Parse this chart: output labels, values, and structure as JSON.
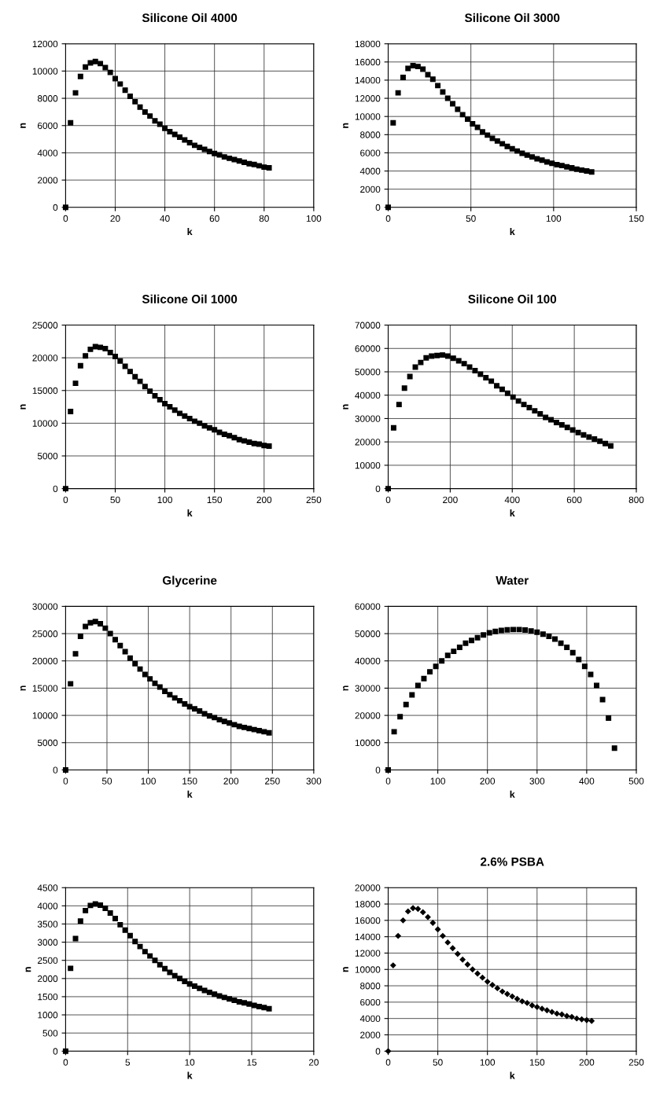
{
  "chart_data": [
    {
      "type": "scatter",
      "title": "Silicone Oil 4000",
      "xlabel": "k",
      "ylabel": "n",
      "marker": "square",
      "grid": true,
      "xlim": [
        0,
        100
      ],
      "xticks": [
        0,
        20,
        40,
        60,
        80,
        100
      ],
      "ylim": [
        0,
        12000
      ],
      "yticks": [
        0,
        2000,
        4000,
        6000,
        8000,
        10000,
        12000
      ],
      "series": [
        {
          "color": "#000000",
          "x": [
            0,
            2,
            4,
            6,
            8,
            10,
            12,
            14,
            16,
            18,
            20,
            22,
            24,
            26,
            28,
            30,
            32,
            34,
            36,
            38,
            40,
            42,
            44,
            46,
            48,
            50,
            52,
            54,
            56,
            58,
            60,
            62,
            64,
            66,
            68,
            70,
            72,
            74,
            76,
            78,
            80,
            82
          ],
          "values": [
            0,
            6200,
            8400,
            9600,
            10300,
            10600,
            10700,
            10550,
            10250,
            9900,
            9450,
            9050,
            8600,
            8150,
            7750,
            7350,
            7000,
            6700,
            6350,
            6100,
            5800,
            5550,
            5350,
            5150,
            4950,
            4750,
            4550,
            4400,
            4250,
            4100,
            3950,
            3850,
            3700,
            3600,
            3500,
            3400,
            3300,
            3200,
            3150,
            3050,
            2950,
            2900
          ]
        }
      ]
    },
    {
      "type": "scatter",
      "title": "Silicone Oil 3000",
      "xlabel": "k",
      "ylabel": "n",
      "marker": "square",
      "grid": true,
      "xlim": [
        0,
        150
      ],
      "xticks": [
        0,
        50,
        100,
        150
      ],
      "ylim": [
        0,
        18000
      ],
      "yticks": [
        0,
        2000,
        4000,
        6000,
        8000,
        10000,
        12000,
        14000,
        16000,
        18000
      ],
      "series": [
        {
          "color": "#000000",
          "x": [
            0,
            3,
            6,
            9,
            12,
            15,
            18,
            21,
            24,
            27,
            30,
            33,
            36,
            39,
            42,
            45,
            48,
            51,
            54,
            57,
            60,
            63,
            66,
            69,
            72,
            75,
            78,
            81,
            84,
            87,
            90,
            93,
            96,
            99,
            102,
            105,
            108,
            111,
            114,
            117,
            120,
            123
          ],
          "values": [
            0,
            9300,
            12600,
            14300,
            15300,
            15600,
            15500,
            15200,
            14600,
            14100,
            13400,
            12700,
            12000,
            11400,
            10800,
            10200,
            9700,
            9200,
            8800,
            8300,
            7950,
            7600,
            7300,
            7000,
            6700,
            6450,
            6200,
            5950,
            5750,
            5550,
            5350,
            5200,
            5000,
            4850,
            4700,
            4600,
            4450,
            4350,
            4200,
            4100,
            4000,
            3900
          ]
        }
      ]
    },
    {
      "type": "scatter",
      "title": "Silicone Oil 1000",
      "xlabel": "k",
      "ylabel": "n",
      "marker": "square",
      "grid": true,
      "xlim": [
        0,
        250
      ],
      "xticks": [
        0,
        50,
        100,
        150,
        200,
        250
      ],
      "ylim": [
        0,
        25000
      ],
      "yticks": [
        0,
        5000,
        10000,
        15000,
        20000,
        25000
      ],
      "series": [
        {
          "color": "#000000",
          "x": [
            0,
            5,
            10,
            15,
            20,
            25,
            30,
            35,
            40,
            45,
            50,
            55,
            60,
            65,
            70,
            75,
            80,
            85,
            90,
            95,
            100,
            105,
            110,
            115,
            120,
            125,
            130,
            135,
            140,
            145,
            150,
            155,
            160,
            165,
            170,
            175,
            180,
            185,
            190,
            195,
            200,
            205
          ],
          "values": [
            0,
            11800,
            16100,
            18800,
            20300,
            21300,
            21700,
            21600,
            21400,
            20800,
            20200,
            19500,
            18700,
            17900,
            17100,
            16400,
            15600,
            14900,
            14200,
            13600,
            13000,
            12500,
            12000,
            11500,
            11100,
            10700,
            10300,
            10000,
            9600,
            9300,
            9000,
            8600,
            8300,
            8100,
            7800,
            7500,
            7300,
            7100,
            6900,
            6800,
            6600,
            6500
          ]
        }
      ]
    },
    {
      "type": "scatter",
      "title": "Silicone Oil 100",
      "xlabel": "k",
      "ylabel": "n",
      "marker": "square",
      "grid": true,
      "xlim": [
        0,
        800
      ],
      "xticks": [
        0,
        200,
        400,
        600,
        800
      ],
      "ylim": [
        0,
        70000
      ],
      "yticks": [
        0,
        10000,
        20000,
        30000,
        40000,
        50000,
        60000,
        70000
      ],
      "series": [
        {
          "color": "#000000",
          "x": [
            0,
            17.5,
            35,
            52.5,
            70,
            87.5,
            105,
            122.5,
            140,
            157.5,
            175,
            192.5,
            210,
            227.5,
            245,
            262.5,
            280,
            297.5,
            315,
            332.5,
            350,
            367.5,
            385,
            402.5,
            420,
            437.5,
            455,
            472.5,
            490,
            507.5,
            525,
            542.5,
            560,
            577.5,
            595,
            612.5,
            630,
            647.5,
            665,
            682.5,
            700,
            717.5
          ],
          "values": [
            0,
            26000,
            36000,
            43000,
            48000,
            52000,
            54000,
            56000,
            56700,
            57000,
            57200,
            56700,
            55800,
            54700,
            53500,
            52000,
            50500,
            49000,
            47500,
            46000,
            44000,
            42500,
            40800,
            39200,
            37500,
            36000,
            34700,
            33300,
            32000,
            30500,
            29500,
            28300,
            27300,
            26200,
            25100,
            24000,
            23000,
            22100,
            21200,
            20300,
            19300,
            18300
          ]
        }
      ]
    },
    {
      "type": "scatter",
      "title": "Glycerine",
      "xlabel": "k",
      "ylabel": "n",
      "marker": "square",
      "grid": true,
      "xlim": [
        0,
        300
      ],
      "xticks": [
        0,
        50,
        100,
        150,
        200,
        250,
        300
      ],
      "ylim": [
        0,
        30000
      ],
      "yticks": [
        0,
        5000,
        10000,
        15000,
        20000,
        25000,
        30000
      ],
      "series": [
        {
          "color": "#000000",
          "x": [
            0,
            6,
            12,
            18,
            24,
            30,
            36,
            42,
            48,
            54,
            60,
            66,
            72,
            78,
            84,
            90,
            96,
            102,
            108,
            114,
            120,
            126,
            132,
            138,
            144,
            150,
            156,
            162,
            168,
            174,
            180,
            186,
            192,
            198,
            204,
            210,
            216,
            222,
            228,
            234,
            240,
            246
          ],
          "values": [
            0,
            15800,
            21300,
            24500,
            26300,
            27000,
            27200,
            26800,
            26000,
            25000,
            23900,
            22800,
            21700,
            20500,
            19500,
            18500,
            17500,
            16700,
            15900,
            15200,
            14400,
            13800,
            13200,
            12700,
            12100,
            11600,
            11200,
            10800,
            10300,
            9900,
            9600,
            9200,
            8900,
            8600,
            8300,
            8000,
            7800,
            7600,
            7400,
            7200,
            7000,
            6800
          ]
        }
      ]
    },
    {
      "type": "scatter",
      "title": "Water",
      "xlabel": "k",
      "ylabel": "n",
      "marker": "square",
      "grid": true,
      "xlim": [
        0,
        500
      ],
      "xticks": [
        0,
        100,
        200,
        300,
        400,
        500
      ],
      "ylim": [
        0,
        60000
      ],
      "yticks": [
        0,
        10000,
        20000,
        30000,
        40000,
        50000,
        60000
      ],
      "series": [
        {
          "color": "#000000",
          "x": [
            0,
            12,
            24,
            36,
            48,
            60,
            72,
            84,
            96,
            108,
            120,
            132,
            144,
            156,
            168,
            180,
            192,
            204,
            216,
            228,
            240,
            252,
            264,
            276,
            288,
            300,
            312,
            324,
            336,
            348,
            360,
            372,
            384,
            396,
            408,
            420,
            432,
            444,
            456
          ],
          "values": [
            0,
            14000,
            19500,
            24000,
            27500,
            31000,
            33500,
            36000,
            38000,
            40000,
            42000,
            43500,
            45000,
            46500,
            47500,
            48500,
            49500,
            50300,
            50800,
            51200,
            51400,
            51500,
            51500,
            51300,
            51000,
            50500,
            49800,
            49000,
            48000,
            46500,
            45000,
            43000,
            40500,
            38000,
            35000,
            31000,
            25800,
            19000,
            8000
          ]
        }
      ]
    },
    {
      "type": "scatter",
      "xlabel": "k",
      "ylabel": "n",
      "marker": "square",
      "grid": true,
      "xlim": [
        0,
        20
      ],
      "xticks": [
        0,
        5,
        10,
        15,
        20
      ],
      "ylim": [
        0,
        4500
      ],
      "yticks": [
        0,
        500,
        1000,
        1500,
        2000,
        2500,
        3000,
        3500,
        4000,
        4500
      ],
      "series": [
        {
          "color": "#000000",
          "x": [
            0,
            0.4,
            0.8,
            1.2,
            1.6,
            2.0,
            2.4,
            2.8,
            3.2,
            3.6,
            4.0,
            4.4,
            4.8,
            5.2,
            5.6,
            6.0,
            6.4,
            6.8,
            7.2,
            7.6,
            8.0,
            8.4,
            8.8,
            9.2,
            9.6,
            10.0,
            10.4,
            10.8,
            11.2,
            11.6,
            12.0,
            12.4,
            12.8,
            13.2,
            13.6,
            14.0,
            14.4,
            14.8,
            15.2,
            15.6,
            16.0,
            16.4
          ],
          "values": [
            0,
            2280,
            3100,
            3580,
            3870,
            4010,
            4050,
            4020,
            3930,
            3800,
            3650,
            3480,
            3330,
            3180,
            3020,
            2880,
            2740,
            2620,
            2500,
            2380,
            2270,
            2170,
            2080,
            2000,
            1920,
            1850,
            1790,
            1730,
            1670,
            1620,
            1570,
            1520,
            1480,
            1440,
            1400,
            1360,
            1330,
            1300,
            1260,
            1230,
            1200,
            1170
          ]
        }
      ]
    },
    {
      "type": "scatter",
      "title": "2.6% PSBA",
      "xlabel": "k",
      "ylabel": "n",
      "marker": "diamond",
      "grid": true,
      "xlim": [
        0,
        250
      ],
      "xticks": [
        0,
        50,
        100,
        150,
        200,
        250
      ],
      "ylim": [
        0,
        20000
      ],
      "yticks": [
        0,
        2000,
        4000,
        6000,
        8000,
        10000,
        12000,
        14000,
        16000,
        18000,
        20000
      ],
      "series": [
        {
          "color": "#000000",
          "x": [
            0,
            5,
            10,
            15,
            20,
            25,
            30,
            35,
            40,
            45,
            50,
            55,
            60,
            65,
            70,
            75,
            80,
            85,
            90,
            95,
            100,
            105,
            110,
            115,
            120,
            125,
            130,
            135,
            140,
            145,
            150,
            155,
            160,
            165,
            170,
            175,
            180,
            185,
            190,
            195,
            200,
            205
          ],
          "values": [
            0,
            10500,
            14100,
            16000,
            17100,
            17500,
            17400,
            17000,
            16400,
            15700,
            14900,
            14100,
            13300,
            12600,
            11900,
            11200,
            10600,
            10000,
            9500,
            9000,
            8500,
            8100,
            7700,
            7300,
            7000,
            6700,
            6400,
            6100,
            5900,
            5600,
            5400,
            5200,
            5000,
            4800,
            4600,
            4500,
            4300,
            4200,
            4000,
            3900,
            3800,
            3700
          ]
        }
      ]
    }
  ]
}
